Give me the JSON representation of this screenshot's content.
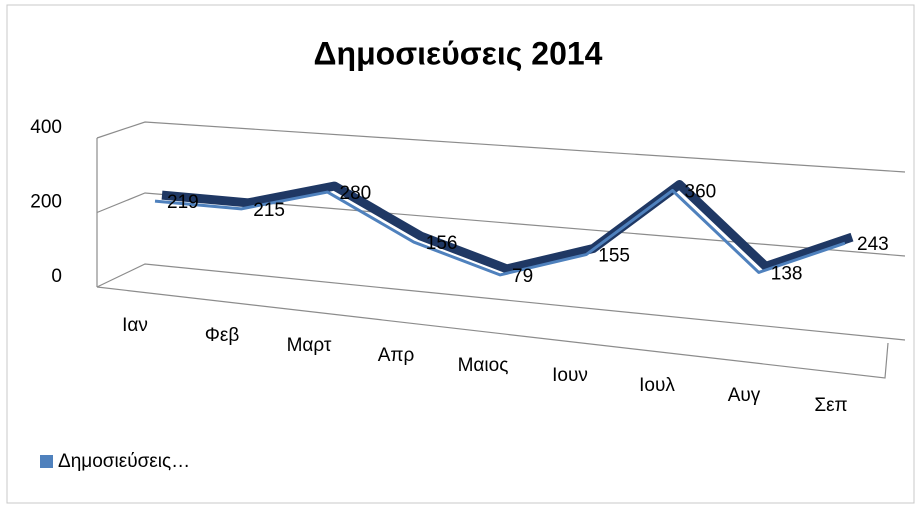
{
  "chart_data": {
    "type": "line3d",
    "title": "Δημοσιεύσεις 2014",
    "categories": [
      "Ιαν",
      "Φεβ",
      "Μαρτ",
      "Απρ",
      "Μαιος",
      "Ιουν",
      "Ιουλ",
      "Αυγ",
      "Σεπ"
    ],
    "series": [
      {
        "name": "Δημοσιεύσεις…",
        "color": "#4f81bd",
        "values": [
          219,
          215,
          280,
          156,
          79,
          155,
          360,
          138,
          243
        ]
      }
    ],
    "ylim": [
      0,
      400
    ],
    "yticks": [
      0,
      200,
      400
    ],
    "grid": true,
    "legend": "bottom-left"
  }
}
